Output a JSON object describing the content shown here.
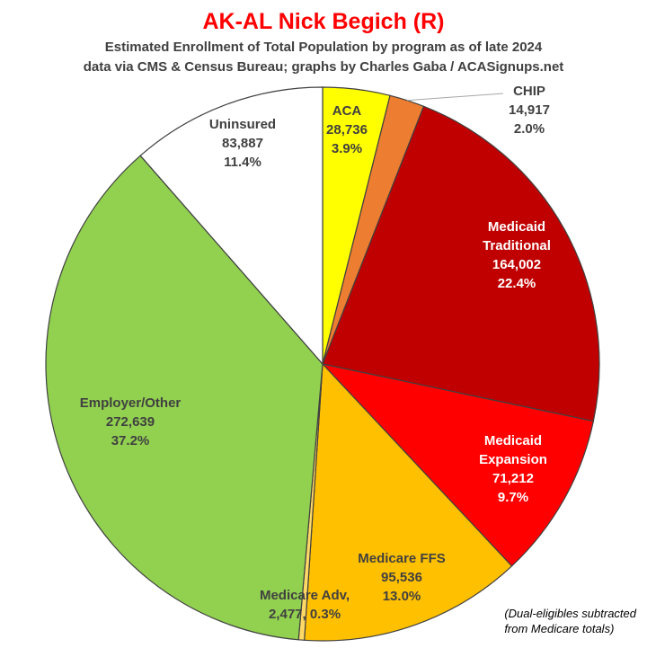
{
  "chart_data": {
    "type": "pie",
    "title": "AK-AL Nick Begich (R)",
    "subtitle_lines": [
      "Estimated Enrollment of Total Population by program as of late 2024",
      "data via CMS & Census Bureau; graphs by Charles Gaba / ACASignups.net"
    ],
    "footnote_lines": [
      "(Dual-eligibles subtracted",
      "from Medicare totals)"
    ],
    "slices": [
      {
        "label_lines": [
          "ACA"
        ],
        "value": 28736,
        "value_text": "28,736",
        "pct_text": "3.9%",
        "color": "#ffff00"
      },
      {
        "label_lines": [
          "CHIP"
        ],
        "value": 14917,
        "value_text": "14,917",
        "pct_text": "2.0%",
        "color": "#ed7d31"
      },
      {
        "label_lines": [
          "Medicaid",
          "Traditional"
        ],
        "value": 164002,
        "value_text": "164,002",
        "pct_text": "22.4%",
        "color": "#c00000"
      },
      {
        "label_lines": [
          "Medicaid",
          "Expansion"
        ],
        "value": 71212,
        "value_text": "71,212",
        "pct_text": "9.7%",
        "color": "#ff0000"
      },
      {
        "label_lines": [
          "Medicare FFS"
        ],
        "value": 95536,
        "value_text": "95,536",
        "pct_text": "13.0%",
        "color": "#ffc000"
      },
      {
        "label_lines": [
          "Medicare Adv,"
        ],
        "value": 2477,
        "value_text": "2,477",
        "pct_text": "0.3%",
        "color": "#ffd966"
      },
      {
        "label_lines": [
          "Employer/Other"
        ],
        "value": 272639,
        "value_text": "272,639",
        "pct_text": "37.2%",
        "color": "#92d050"
      },
      {
        "label_lines": [
          "Uninsured"
        ],
        "value": 83887,
        "value_text": "83,887",
        "pct_text": "11.4%",
        "color": "#ffffff"
      }
    ]
  }
}
